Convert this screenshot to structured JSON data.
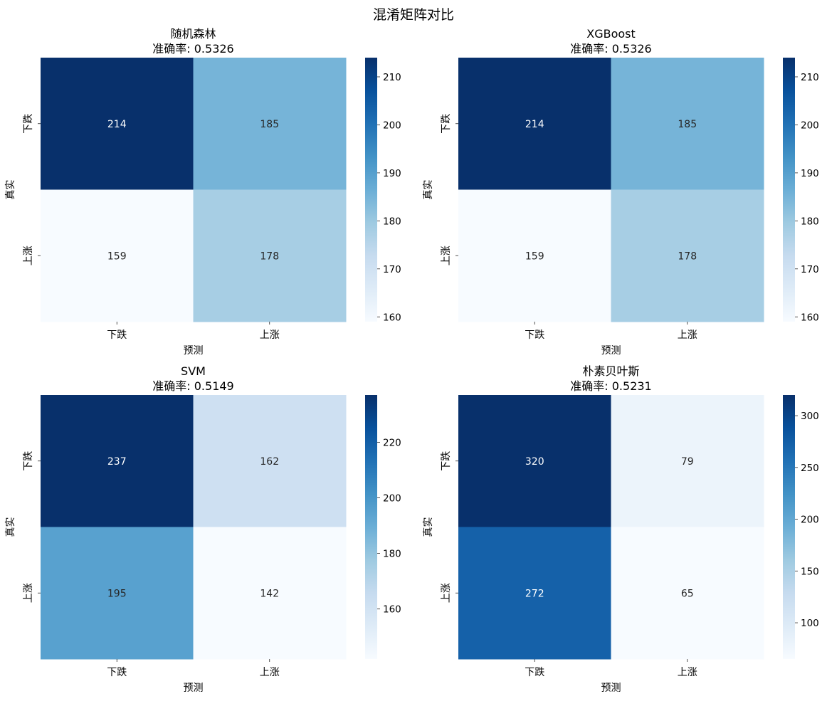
{
  "figure": {
    "suptitle": "混淆矩阵对比"
  },
  "chart_data": [
    {
      "type": "heatmap",
      "title": "随机森林",
      "subtitle": "准确率: 0.5326",
      "xlabel": "预测",
      "ylabel": "真实",
      "x_categories": [
        "下跌",
        "上涨"
      ],
      "y_categories": [
        "下跌",
        "上涨"
      ],
      "values": [
        [
          214,
          185
        ],
        [
          159,
          178
        ]
      ],
      "colormap": "Blues",
      "colorbar_ticks": [
        160,
        170,
        180,
        190,
        200,
        210
      ]
    },
    {
      "type": "heatmap",
      "title": "XGBoost",
      "subtitle": "准确率: 0.5326",
      "xlabel": "预测",
      "ylabel": "真实",
      "x_categories": [
        "下跌",
        "上涨"
      ],
      "y_categories": [
        "下跌",
        "上涨"
      ],
      "values": [
        [
          214,
          185
        ],
        [
          159,
          178
        ]
      ],
      "colormap": "Blues",
      "colorbar_ticks": [
        160,
        170,
        180,
        190,
        200,
        210
      ]
    },
    {
      "type": "heatmap",
      "title": "SVM",
      "subtitle": "准确率: 0.5149",
      "xlabel": "预测",
      "ylabel": "真实",
      "x_categories": [
        "下跌",
        "上涨"
      ],
      "y_categories": [
        "下跌",
        "上涨"
      ],
      "values": [
        [
          237,
          162
        ],
        [
          195,
          142
        ]
      ],
      "colormap": "Blues",
      "colorbar_ticks": [
        160,
        180,
        200,
        220
      ]
    },
    {
      "type": "heatmap",
      "title": "朴素贝叶斯",
      "subtitle": "准确率: 0.5231",
      "xlabel": "预测",
      "ylabel": "真实",
      "x_categories": [
        "下跌",
        "上涨"
      ],
      "y_categories": [
        "下跌",
        "上涨"
      ],
      "values": [
        [
          320,
          79
        ],
        [
          272,
          65
        ]
      ],
      "colormap": "Blues",
      "colorbar_ticks": [
        100,
        150,
        200,
        250,
        300
      ]
    }
  ]
}
